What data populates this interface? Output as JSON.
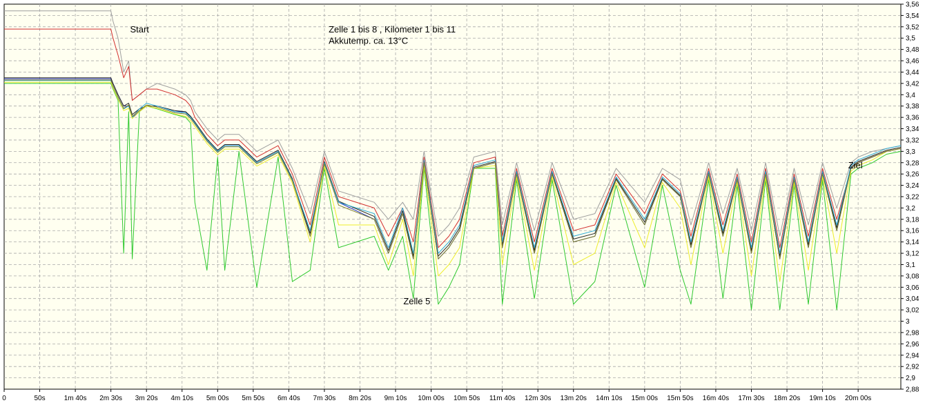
{
  "chart_data": {
    "type": "line",
    "title": "",
    "xlabel": "",
    "ylabel": "",
    "ylim": [
      2.88,
      3.56
    ],
    "xlim_seconds": [
      0,
      1260
    ],
    "y_ticks": [
      "3,56",
      "3,54",
      "3,52",
      "3,5",
      "3,48",
      "3,46",
      "3,44",
      "3,42",
      "3,4",
      "3,38",
      "3,36",
      "3,34",
      "3,32",
      "3,3",
      "3,28",
      "3,26",
      "3,24",
      "3,22",
      "3,2",
      "3,18",
      "3,16",
      "3,14",
      "3,12",
      "3,1",
      "3,08",
      "3,06",
      "3,04",
      "3,02",
      "3",
      "2,98",
      "2,96",
      "2,94",
      "2,92",
      "2,9",
      "2,88"
    ],
    "x_ticks": [
      "0",
      "50s",
      "1m 40s",
      "2m 30s",
      "3m 20s",
      "4m 10s",
      "5m 00s",
      "5m 50s",
      "6m 40s",
      "7m 30s",
      "8m 20s",
      "9m 10s",
      "10m 00s",
      "10m 50s",
      "11m 40s",
      "12m 30s",
      "13m 20s",
      "14m 10s",
      "15m 00s",
      "15m 50s",
      "16m 40s",
      "17m 30s",
      "18m 20s",
      "19m 10s",
      "20m 00s"
    ],
    "grid": true,
    "annotations": [
      {
        "text": "Start",
        "x": 177,
        "y": 3.51
      },
      {
        "text": "Zelle 1 bis 8 , Kilometer 1 bis 11",
        "x": 456,
        "y": 3.51
      },
      {
        "text": "Akkutemp. ca. 13°C",
        "x": 456,
        "y": 3.49
      },
      {
        "text": "Zelle 5",
        "x": 561,
        "y": 3.03
      },
      {
        "text": "Ziel",
        "x": 1186,
        "y": 3.27
      }
    ],
    "series_colors": [
      "#9e9e9e",
      "#d22f2f",
      "#2030c0",
      "#222222",
      "#2aa8d6",
      "#2ec82e",
      "#eded2a",
      "#7f7f2a"
    ],
    "series": [
      {
        "color": "#9e9e9e",
        "x": [
          0,
          150,
          153,
          160,
          168,
          175,
          180,
          190,
          200,
          215,
          240,
          255,
          262,
          268,
          285,
          300,
          310,
          330,
          355,
          385,
          405,
          430,
          450,
          470,
          520,
          540,
          560,
          575,
          590,
          610,
          625,
          640,
          660,
          690,
          700,
          720,
          745,
          770,
          800,
          830,
          860,
          900,
          925,
          950,
          965,
          990,
          1010,
          1030,
          1050,
          1070,
          1090,
          1110,
          1130,
          1150,
          1170,
          1190,
          1200,
          1220,
          1240,
          1260
        ],
        "y": [
          3.548,
          3.548,
          3.53,
          3.5,
          3.44,
          3.46,
          3.39,
          3.4,
          3.41,
          3.42,
          3.41,
          3.4,
          3.39,
          3.37,
          3.34,
          3.32,
          3.33,
          3.33,
          3.3,
          3.32,
          3.27,
          3.19,
          3.3,
          3.23,
          3.21,
          3.18,
          3.21,
          3.18,
          3.3,
          3.15,
          3.17,
          3.2,
          3.29,
          3.3,
          3.17,
          3.28,
          3.16,
          3.28,
          3.18,
          3.19,
          3.27,
          3.21,
          3.27,
          3.25,
          3.17,
          3.28,
          3.19,
          3.27,
          3.16,
          3.28,
          3.15,
          3.27,
          3.17,
          3.28,
          3.2,
          3.28,
          3.29,
          3.3,
          3.305,
          3.31
        ]
      },
      {
        "color": "#d22f2f",
        "x": [
          0,
          150,
          153,
          160,
          168,
          175,
          180,
          190,
          200,
          215,
          240,
          255,
          262,
          268,
          285,
          300,
          310,
          330,
          355,
          385,
          405,
          430,
          450,
          470,
          520,
          540,
          560,
          575,
          590,
          610,
          625,
          640,
          660,
          690,
          700,
          720,
          745,
          770,
          800,
          830,
          860,
          900,
          925,
          950,
          965,
          990,
          1010,
          1030,
          1050,
          1070,
          1090,
          1110,
          1130,
          1150,
          1170,
          1190,
          1200,
          1220,
          1240,
          1260
        ],
        "y": [
          3.516,
          3.516,
          3.5,
          3.47,
          3.43,
          3.45,
          3.39,
          3.4,
          3.41,
          3.41,
          3.4,
          3.39,
          3.38,
          3.36,
          3.33,
          3.31,
          3.32,
          3.32,
          3.29,
          3.31,
          3.26,
          3.17,
          3.29,
          3.22,
          3.2,
          3.15,
          3.2,
          3.14,
          3.29,
          3.13,
          3.15,
          3.18,
          3.28,
          3.29,
          3.15,
          3.27,
          3.14,
          3.27,
          3.16,
          3.17,
          3.26,
          3.19,
          3.26,
          3.23,
          3.15,
          3.27,
          3.17,
          3.26,
          3.14,
          3.27,
          3.13,
          3.26,
          3.15,
          3.27,
          3.18,
          3.27,
          3.28,
          3.29,
          3.3,
          3.305
        ]
      },
      {
        "color": "#2030c0",
        "x": [
          0,
          150,
          153,
          160,
          168,
          175,
          180,
          190,
          200,
          215,
          240,
          255,
          262,
          268,
          285,
          300,
          310,
          330,
          355,
          385,
          405,
          430,
          450,
          470,
          520,
          540,
          560,
          575,
          590,
          610,
          625,
          640,
          660,
          690,
          700,
          720,
          745,
          770,
          800,
          830,
          860,
          900,
          925,
          950,
          965,
          990,
          1010,
          1030,
          1050,
          1070,
          1090,
          1110,
          1130,
          1150,
          1170,
          1190,
          1200,
          1220,
          1240,
          1260
        ],
        "y": [
          3.428,
          3.428,
          3.42,
          3.4,
          3.38,
          3.38,
          3.36,
          3.37,
          3.38,
          3.38,
          3.37,
          3.37,
          3.36,
          3.35,
          3.32,
          3.3,
          3.31,
          3.31,
          3.28,
          3.3,
          3.25,
          3.15,
          3.28,
          3.21,
          3.18,
          3.12,
          3.19,
          3.11,
          3.28,
          3.11,
          3.13,
          3.16,
          3.27,
          3.28,
          3.13,
          3.26,
          3.12,
          3.26,
          3.14,
          3.15,
          3.25,
          3.17,
          3.25,
          3.22,
          3.13,
          3.26,
          3.15,
          3.25,
          3.12,
          3.26,
          3.11,
          3.25,
          3.13,
          3.26,
          3.16,
          3.27,
          3.28,
          3.29,
          3.3,
          3.305
        ]
      },
      {
        "color": "#222222",
        "x": [
          0,
          150,
          153,
          160,
          168,
          175,
          180,
          190,
          200,
          215,
          240,
          255,
          262,
          268,
          285,
          300,
          310,
          330,
          355,
          385,
          405,
          430,
          450,
          470,
          520,
          540,
          560,
          575,
          590,
          610,
          625,
          640,
          660,
          690,
          700,
          720,
          745,
          770,
          800,
          830,
          860,
          900,
          925,
          950,
          965,
          990,
          1010,
          1030,
          1050,
          1070,
          1090,
          1110,
          1130,
          1150,
          1170,
          1190,
          1200,
          1220,
          1240,
          1260
        ],
        "y": [
          3.43,
          3.43,
          3.42,
          3.4,
          3.38,
          3.385,
          3.365,
          3.375,
          3.38,
          3.38,
          3.372,
          3.37,
          3.362,
          3.352,
          3.322,
          3.302,
          3.312,
          3.312,
          3.282,
          3.302,
          3.252,
          3.155,
          3.282,
          3.212,
          3.185,
          3.125,
          3.195,
          3.115,
          3.282,
          3.115,
          3.135,
          3.165,
          3.272,
          3.282,
          3.135,
          3.262,
          3.125,
          3.262,
          3.145,
          3.155,
          3.252,
          3.175,
          3.252,
          3.222,
          3.135,
          3.262,
          3.155,
          3.252,
          3.125,
          3.262,
          3.115,
          3.252,
          3.135,
          3.262,
          3.165,
          3.272,
          3.282,
          3.292,
          3.302,
          3.307
        ]
      },
      {
        "color": "#2aa8d6",
        "x": [
          0,
          150,
          153,
          160,
          168,
          175,
          180,
          190,
          200,
          215,
          240,
          255,
          262,
          268,
          285,
          300,
          310,
          330,
          355,
          385,
          405,
          430,
          450,
          470,
          520,
          540,
          560,
          575,
          590,
          610,
          625,
          640,
          660,
          690,
          700,
          720,
          745,
          770,
          800,
          830,
          860,
          900,
          925,
          950,
          965,
          990,
          1010,
          1030,
          1050,
          1070,
          1090,
          1110,
          1130,
          1150,
          1170,
          1190,
          1200,
          1220,
          1240,
          1260
        ],
        "y": [
          3.425,
          3.425,
          3.415,
          3.395,
          3.375,
          3.38,
          3.36,
          3.375,
          3.385,
          3.38,
          3.37,
          3.368,
          3.36,
          3.35,
          3.32,
          3.3,
          3.31,
          3.31,
          3.28,
          3.3,
          3.25,
          3.16,
          3.28,
          3.21,
          3.19,
          3.13,
          3.2,
          3.12,
          3.285,
          3.12,
          3.14,
          3.17,
          3.275,
          3.285,
          3.14,
          3.265,
          3.13,
          3.265,
          3.15,
          3.16,
          3.255,
          3.18,
          3.255,
          3.225,
          3.14,
          3.265,
          3.16,
          3.255,
          3.13,
          3.265,
          3.12,
          3.255,
          3.14,
          3.265,
          3.17,
          3.275,
          3.285,
          3.295,
          3.305,
          3.31
        ]
      },
      {
        "color": "#2ec82e",
        "x": [
          0,
          150,
          153,
          160,
          168,
          175,
          180,
          190,
          200,
          215,
          240,
          255,
          262,
          268,
          285,
          300,
          310,
          330,
          355,
          385,
          405,
          430,
          450,
          470,
          520,
          540,
          560,
          575,
          590,
          610,
          625,
          640,
          660,
          690,
          700,
          720,
          745,
          770,
          800,
          830,
          860,
          900,
          925,
          950,
          965,
          990,
          1010,
          1030,
          1050,
          1070,
          1090,
          1110,
          1130,
          1150,
          1170,
          1190,
          1200,
          1220,
          1240,
          1260
        ],
        "y": [
          3.42,
          3.42,
          3.41,
          3.39,
          3.12,
          3.37,
          3.11,
          3.37,
          3.38,
          3.375,
          3.365,
          3.36,
          3.35,
          3.21,
          3.09,
          3.29,
          3.09,
          3.3,
          3.06,
          3.29,
          3.07,
          3.09,
          3.27,
          3.13,
          3.15,
          3.09,
          3.15,
          3.04,
          3.27,
          3.03,
          3.06,
          3.1,
          3.27,
          3.27,
          3.03,
          3.25,
          3.04,
          3.25,
          3.03,
          3.07,
          3.24,
          3.06,
          3.24,
          3.09,
          3.03,
          3.25,
          3.04,
          3.24,
          3.02,
          3.25,
          3.02,
          3.24,
          3.03,
          3.25,
          3.02,
          3.26,
          3.27,
          3.28,
          3.295,
          3.3
        ]
      },
      {
        "color": "#eded2a",
        "x": [
          0,
          150,
          153,
          160,
          168,
          175,
          180,
          190,
          200,
          215,
          240,
          255,
          262,
          268,
          285,
          300,
          310,
          330,
          355,
          385,
          405,
          430,
          450,
          470,
          520,
          540,
          560,
          575,
          590,
          610,
          625,
          640,
          660,
          690,
          700,
          720,
          745,
          770,
          800,
          830,
          860,
          900,
          925,
          950,
          965,
          990,
          1010,
          1030,
          1050,
          1070,
          1090,
          1110,
          1130,
          1150,
          1170,
          1190,
          1200,
          1220,
          1240,
          1260
        ],
        "y": [
          3.422,
          3.422,
          3.412,
          3.392,
          3.372,
          3.376,
          3.358,
          3.37,
          3.38,
          3.376,
          3.366,
          3.362,
          3.354,
          3.344,
          3.314,
          3.294,
          3.304,
          3.304,
          3.274,
          3.294,
          3.244,
          3.14,
          3.274,
          3.17,
          3.17,
          3.1,
          3.18,
          3.08,
          3.275,
          3.08,
          3.1,
          3.13,
          3.27,
          3.275,
          3.1,
          3.255,
          3.09,
          3.255,
          3.1,
          3.12,
          3.245,
          3.13,
          3.245,
          3.2,
          3.1,
          3.255,
          3.12,
          3.245,
          3.08,
          3.255,
          3.07,
          3.245,
          3.09,
          3.255,
          3.12,
          3.265,
          3.275,
          3.285,
          3.3,
          3.305
        ]
      },
      {
        "color": "#7f7f2a",
        "x": [
          0,
          150,
          153,
          160,
          168,
          175,
          180,
          190,
          200,
          215,
          240,
          255,
          262,
          268,
          285,
          300,
          310,
          330,
          355,
          385,
          405,
          430,
          450,
          470,
          520,
          540,
          560,
          575,
          590,
          610,
          625,
          640,
          660,
          690,
          700,
          720,
          745,
          770,
          800,
          830,
          860,
          900,
          925,
          950,
          965,
          990,
          1010,
          1030,
          1050,
          1070,
          1090,
          1110,
          1130,
          1150,
          1170,
          1190,
          1200,
          1220,
          1240,
          1260
        ],
        "y": [
          3.426,
          3.426,
          3.416,
          3.396,
          3.376,
          3.382,
          3.362,
          3.372,
          3.382,
          3.378,
          3.368,
          3.366,
          3.358,
          3.348,
          3.318,
          3.298,
          3.308,
          3.308,
          3.278,
          3.298,
          3.248,
          3.15,
          3.278,
          3.205,
          3.18,
          3.12,
          3.19,
          3.11,
          3.28,
          3.11,
          3.13,
          3.16,
          3.27,
          3.28,
          3.13,
          3.26,
          3.12,
          3.26,
          3.14,
          3.15,
          3.25,
          3.17,
          3.25,
          3.22,
          3.13,
          3.26,
          3.15,
          3.25,
          3.12,
          3.26,
          3.11,
          3.25,
          3.13,
          3.26,
          3.16,
          3.27,
          3.28,
          3.29,
          3.3,
          3.305
        ]
      }
    ]
  }
}
